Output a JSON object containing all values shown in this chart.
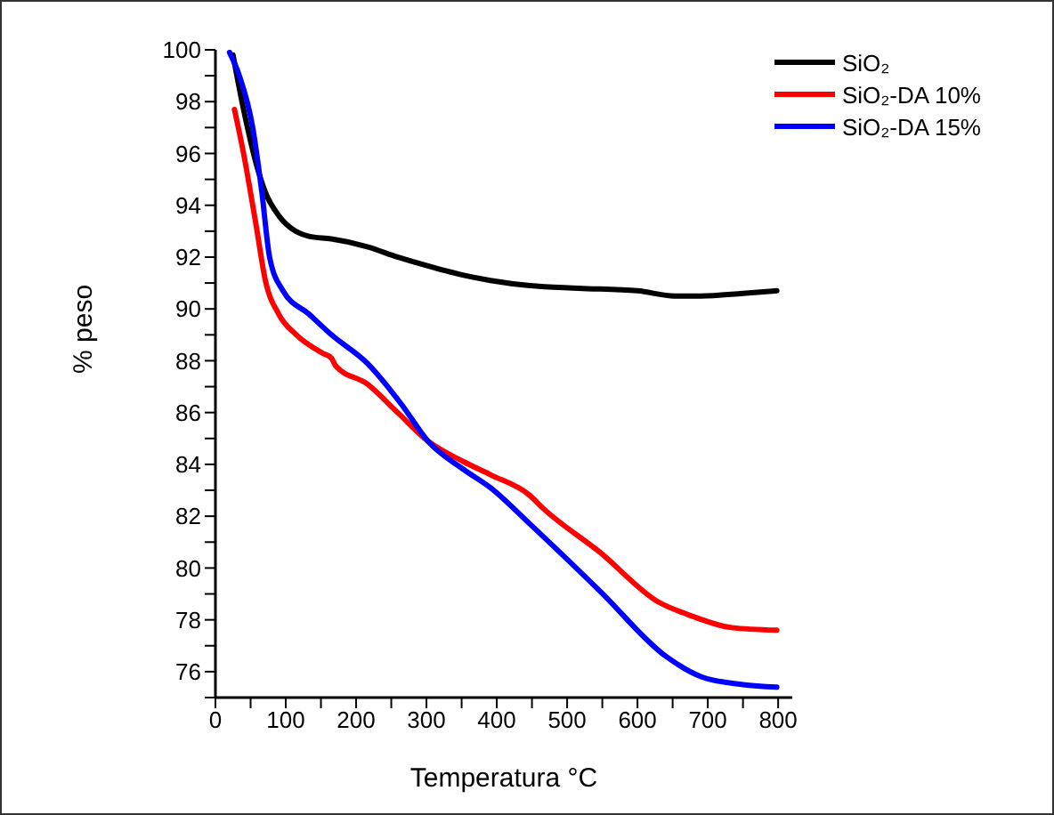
{
  "chart_data": {
    "type": "line",
    "xlabel": "Temperatura °C",
    "ylabel": "% peso",
    "xlim": [
      0,
      820
    ],
    "ylim": [
      75,
      100
    ],
    "xticks": [
      0,
      {
        "value": 50,
        "label": null
      },
      100,
      {
        "value": 150,
        "label": null
      },
      200,
      {
        "value": 250,
        "label": null
      },
      300,
      {
        "value": 350,
        "label": null
      },
      400,
      {
        "value": 450,
        "label": null
      },
      500,
      {
        "value": 550,
        "label": null
      },
      600,
      {
        "value": 650,
        "label": null
      },
      700,
      {
        "value": 750,
        "label": null
      },
      800
    ],
    "yticks": [
      {
        "value": 75,
        "label": null
      },
      76,
      {
        "value": 77,
        "label": null
      },
      78,
      {
        "value": 79,
        "label": null
      },
      80,
      {
        "value": 81,
        "label": null
      },
      82,
      {
        "value": 83,
        "label": null
      },
      84,
      {
        "value": 85,
        "label": null
      },
      86,
      {
        "value": 87,
        "label": null
      },
      88,
      {
        "value": 89,
        "label": null
      },
      90,
      {
        "value": 91,
        "label": null
      },
      92,
      {
        "value": 93,
        "label": null
      },
      94,
      {
        "value": 95,
        "label": null
      },
      96,
      {
        "value": 97,
        "label": null
      },
      98,
      {
        "value": 99,
        "label": null
      },
      100
    ],
    "grid": false,
    "legend": "top right",
    "marker": "none",
    "line_style": "solid",
    "series": [
      {
        "name": "SiO₂",
        "color": "#000000",
        "x": [
          25,
          40,
          58,
          71,
          90,
          133,
          165,
          216,
          259,
          310,
          353,
          391,
          447,
          516,
          600,
          653,
          690,
          750,
          798
        ],
        "values": [
          99.8,
          97.7,
          95.6,
          94.5,
          93.6,
          92.8,
          92.7,
          92.4,
          92.0,
          91.6,
          91.3,
          91.1,
          90.9,
          90.8,
          90.7,
          90.5,
          90.5,
          90.6,
          90.7
        ]
      },
      {
        "name": "SiO₂-DA 10%",
        "color": "#ff0000",
        "x": [
          27,
          40,
          58,
          71,
          90,
          115,
          152,
          165,
          171,
          216,
          259,
          302,
          353,
          391,
          447,
          466,
          547,
          629,
          672,
          734,
          798
        ],
        "values": [
          97.7,
          96.0,
          93.2,
          91.1,
          89.8,
          89.0,
          88.3,
          88.1,
          87.8,
          87.1,
          86.0,
          84.9,
          84.1,
          83.6,
          82.8,
          82.3,
          80.6,
          78.7,
          78.2,
          77.7,
          77.6
        ]
      },
      {
        "name": "SiO₂-DA 15%",
        "color": "#0000ff",
        "x": [
          20,
          34,
          53,
          66,
          77,
          96,
          133,
          165,
          216,
          265,
          302,
          353,
          391,
          447,
          547,
          640,
          691,
          750,
          798
        ],
        "values": [
          99.9,
          99.0,
          97.0,
          94.5,
          92.0,
          90.7,
          89.8,
          89.0,
          87.9,
          86.3,
          84.9,
          83.8,
          83.1,
          81.7,
          79.1,
          76.6,
          75.8,
          75.5,
          75.4
        ]
      }
    ]
  }
}
